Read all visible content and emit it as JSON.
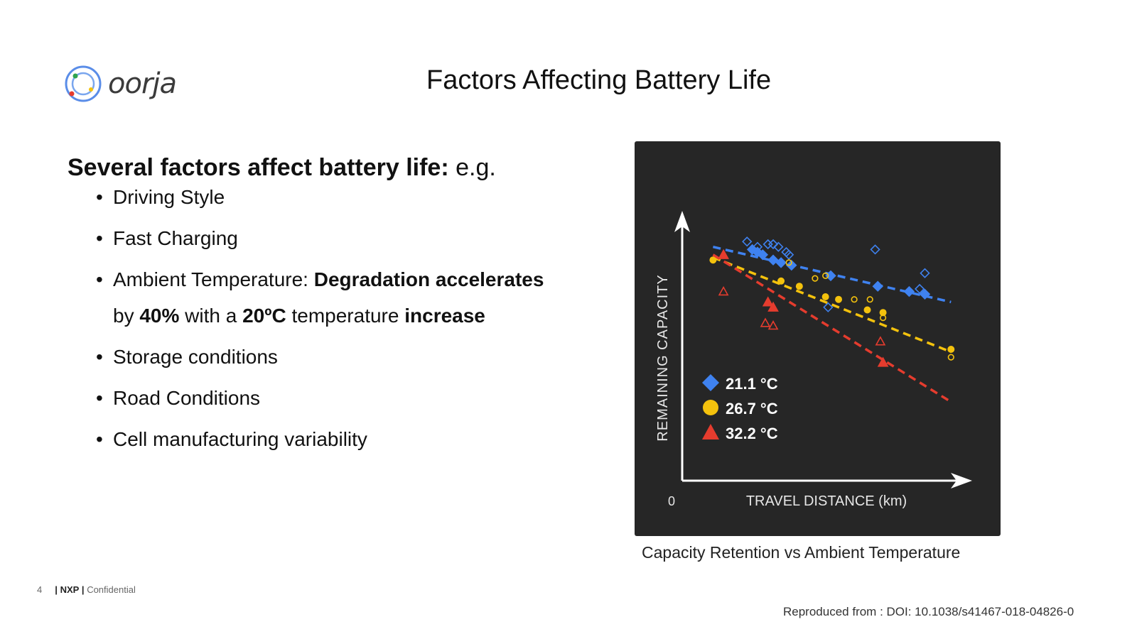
{
  "brand": {
    "name": "oorja"
  },
  "slide": {
    "title": "Factors Affecting Battery Life"
  },
  "intro": {
    "bold": "Several factors affect battery life:",
    "rest": " e.g."
  },
  "factors": {
    "driving": "Driving Style",
    "fast_charging": "Fast Charging",
    "ambient": {
      "t1": "Ambient Temperature: ",
      "b1": "Degradation accelerates",
      "t2": " by ",
      "b2": "40%",
      "t3": " with a ",
      "b3": "20ºC",
      "t4": " temperature ",
      "b4": "increase"
    },
    "storage": "Storage conditions",
    "road": "Road Conditions",
    "cell": "Cell manufacturing variability"
  },
  "chart_data": {
    "type": "scatter",
    "xlabel": "TRAVEL DISTANCE (km)",
    "ylabel": "REMAINING CAPACITY",
    "x_origin_label": "0",
    "xlim": [
      0,
      100
    ],
    "ylim": [
      0,
      100
    ],
    "series": [
      {
        "name": "21.1 °C",
        "marker": "diamond",
        "color": "#3f82f0",
        "filled": [
          [
            20,
            88
          ],
          [
            22,
            87
          ],
          [
            24,
            86
          ],
          [
            28,
            84
          ],
          [
            31,
            83
          ],
          [
            35,
            82
          ],
          [
            50,
            78
          ],
          [
            68,
            74
          ],
          [
            80,
            72
          ],
          [
            86,
            71
          ]
        ],
        "hollow": [
          [
            18,
            91
          ],
          [
            22,
            89
          ],
          [
            26,
            90
          ],
          [
            28,
            90
          ],
          [
            30,
            89
          ],
          [
            33,
            87
          ],
          [
            34,
            86
          ],
          [
            49,
            66
          ],
          [
            67,
            88
          ],
          [
            84,
            73
          ],
          [
            86,
            79
          ]
        ],
        "trend": [
          [
            5,
            89
          ],
          [
            96,
            68
          ]
        ]
      },
      {
        "name": "26.7 °C",
        "marker": "circle",
        "color": "#f4c20d",
        "filled": [
          [
            5,
            84
          ],
          [
            31,
            76
          ],
          [
            38,
            74
          ],
          [
            48,
            70
          ],
          [
            53,
            69
          ],
          [
            64,
            65
          ],
          [
            70,
            64
          ],
          [
            96,
            50
          ]
        ],
        "hollow": [
          [
            34,
            83
          ],
          [
            44,
            77
          ],
          [
            48,
            78
          ],
          [
            59,
            69
          ],
          [
            65,
            69
          ],
          [
            70,
            62
          ],
          [
            96,
            47
          ]
        ],
        "trend": [
          [
            5,
            85
          ],
          [
            96,
            49
          ]
        ]
      },
      {
        "name": "32.2 °C",
        "marker": "triangle",
        "color": "#e53c2e",
        "filled": [
          [
            9,
            86
          ],
          [
            26,
            68
          ],
          [
            28,
            66
          ],
          [
            70,
            45
          ]
        ],
        "hollow": [
          [
            9,
            72
          ],
          [
            25,
            60
          ],
          [
            28,
            59
          ],
          [
            69,
            53
          ]
        ],
        "trend": [
          [
            5,
            86
          ],
          [
            96,
            30
          ]
        ]
      }
    ]
  },
  "chart": {
    "caption": "Capacity Retention vs Ambient Temperature"
  },
  "footer": {
    "page": "4",
    "company": "NXP",
    "classification": "Confidential",
    "source": "Reproduced from : DOI: 10.1038/s41467-018-04826-0"
  },
  "colors": {
    "chart_bg": "#262626",
    "axis": "#ffffff"
  }
}
